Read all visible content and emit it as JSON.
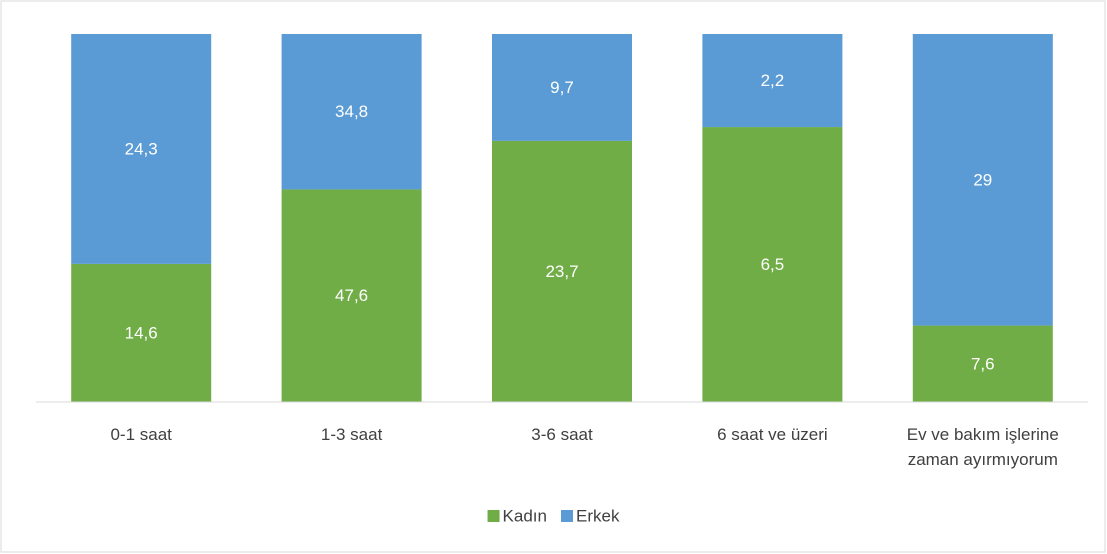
{
  "chart_data": {
    "type": "bar",
    "stack": "percent",
    "categories": [
      "0-1 saat",
      "1-3 saat",
      "3-6 saat",
      "6 saat ve üzeri",
      "Ev ve bakım işlerine zaman ayırmıyorum"
    ],
    "series": [
      {
        "name": "Kadın",
        "color": "#70ad47",
        "values": [
          14.6,
          47.6,
          23.7,
          6.5,
          7.6
        ],
        "value_labels": [
          "14,6",
          "47,6",
          "23,7",
          "6,5",
          "7,6"
        ]
      },
      {
        "name": "Erkek",
        "color": "#5b9bd5",
        "values": [
          24.3,
          34.8,
          9.7,
          2.2,
          29
        ],
        "value_labels": [
          "24,3",
          "34,8",
          "9,7",
          "2,2",
          "29"
        ]
      }
    ],
    "legend": "bottom"
  }
}
